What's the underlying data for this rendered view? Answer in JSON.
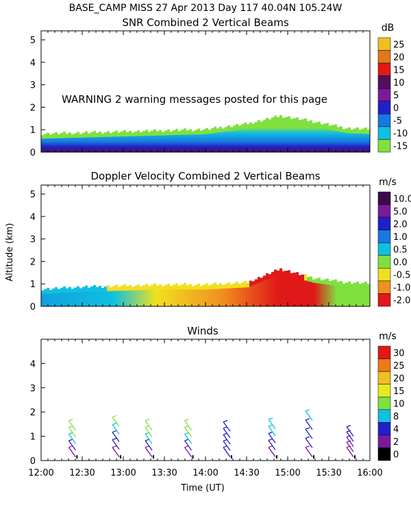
{
  "header": {
    "line1": "BASE_CAMP MISS  27 Apr 2013 Day 117 40.04N 105.24W"
  },
  "shared_axes": {
    "xlabel": "Time (UT)",
    "ylabel": "Altitude (km)",
    "x_tick_labels": [
      "12:00",
      "12:30",
      "13:00",
      "13:30",
      "14:00",
      "14:30",
      "15:00",
      "15:30",
      "16:00"
    ],
    "xlim_hours": [
      12.0,
      16.0
    ]
  },
  "warning": "WARNING  2 warning messages posted for this page",
  "chart_data": [
    {
      "type": "heatmap",
      "title": "SNR Combined 2 Vertical Beams",
      "ylim": [
        0,
        5.4
      ],
      "yticks": [
        0,
        1,
        2,
        3,
        4,
        5
      ],
      "colorbar": {
        "unit": "dB",
        "labels": [
          "25",
          "20",
          "15",
          "10",
          "5",
          "0",
          "-5",
          "-10",
          "-15"
        ],
        "colors": [
          "#f0c020",
          "#e07818",
          "#e01818",
          "#501060",
          "#7a1a9a",
          "#2020c8",
          "#1878e0",
          "#10c0e0",
          "#80e040"
        ]
      },
      "echo_top_km": [
        {
          "t": 12.0,
          "h": 0.75
        },
        {
          "t": 12.5,
          "h": 0.8
        },
        {
          "t": 13.0,
          "h": 0.85
        },
        {
          "t": 13.5,
          "h": 0.9
        },
        {
          "t": 14.0,
          "h": 0.95
        },
        {
          "t": 14.5,
          "h": 1.2
        },
        {
          "t": 14.9,
          "h": 1.55
        },
        {
          "t": 15.3,
          "h": 1.3
        },
        {
          "t": 15.7,
          "h": 1.0
        },
        {
          "t": 16.0,
          "h": 0.95
        }
      ]
    },
    {
      "type": "heatmap",
      "title": "Doppler Velocity Combined 2 Vertical Beams",
      "ylim": [
        0,
        5.4
      ],
      "yticks": [
        0,
        1,
        2,
        3,
        4,
        5
      ],
      "colorbar": {
        "unit": "m/s",
        "labels": [
          "10.0",
          "5.0",
          "2.0",
          "1.0",
          "0.5",
          "0.0",
          "-0.5",
          "-1.0",
          "-2.0"
        ],
        "colors": [
          "#3a0a4a",
          "#7a1a9a",
          "#2020c8",
          "#1878e0",
          "#10c0e0",
          "#80e040",
          "#f0e020",
          "#f09020",
          "#e01818"
        ]
      },
      "echo_top_km": [
        {
          "t": 12.0,
          "h": 0.7
        },
        {
          "t": 12.5,
          "h": 0.8
        },
        {
          "t": 13.0,
          "h": 0.85
        },
        {
          "t": 13.5,
          "h": 0.9
        },
        {
          "t": 14.0,
          "h": 0.9
        },
        {
          "t": 14.5,
          "h": 1.0
        },
        {
          "t": 14.9,
          "h": 1.6
        },
        {
          "t": 15.3,
          "h": 1.2
        },
        {
          "t": 15.7,
          "h": 1.0
        },
        {
          "t": 16.0,
          "h": 0.95
        }
      ]
    },
    {
      "type": "wind_barbs",
      "title": "Winds",
      "ylim": [
        0,
        5.0
      ],
      "yticks": [
        0,
        1,
        2,
        3,
        4
      ],
      "colorbar": {
        "unit": "m/s",
        "labels": [
          "30",
          "25",
          "20",
          "15",
          "10",
          "8",
          "4",
          "2",
          "0"
        ],
        "colors": [
          "#e01818",
          "#f07818",
          "#f0c020",
          "#e8e820",
          "#80e040",
          "#10c0e0",
          "#2020c8",
          "#7a1a9a",
          "#000000"
        ]
      },
      "profiles": [
        {
          "time": 12.42,
          "top_km": 1.25,
          "speed_ms": [
            3,
            6,
            8,
            10,
            12
          ]
        },
        {
          "time": 12.95,
          "top_km": 1.4,
          "speed_ms": [
            2,
            4,
            6,
            8,
            10
          ]
        },
        {
          "time": 13.35,
          "top_km": 1.25,
          "speed_ms": [
            3,
            5,
            8,
            10,
            12
          ]
        },
        {
          "time": 13.83,
          "top_km": 1.25,
          "speed_ms": [
            3,
            5,
            8,
            10,
            12
          ]
        },
        {
          "time": 14.3,
          "top_km": 1.2,
          "speed_ms": [
            4,
            5,
            6,
            6,
            7
          ]
        },
        {
          "time": 14.85,
          "top_km": 1.3,
          "speed_ms": [
            3,
            5,
            6,
            8,
            8
          ]
        },
        {
          "time": 15.3,
          "top_km": 1.65,
          "speed_ms": [
            3,
            4,
            6,
            7,
            8
          ]
        },
        {
          "time": 15.8,
          "top_km": 1.0,
          "speed_ms": [
            2,
            3,
            3,
            4,
            4
          ]
        }
      ]
    }
  ]
}
